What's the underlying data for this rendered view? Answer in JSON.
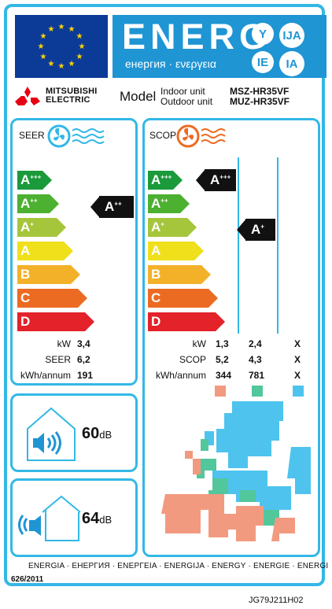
{
  "header": {
    "energy_label": "ENERG",
    "energy_sub": "енергия · ενεργεια",
    "lang_badges": [
      "Y",
      "IJA",
      "IE",
      "IA"
    ]
  },
  "brand": {
    "logo_line1": "MITSUBISHI",
    "logo_line2": "ELECTRIC"
  },
  "model": {
    "label": "Model",
    "indoor_label": "Indoor unit",
    "outdoor_label": "Outdoor unit",
    "indoor_id": "MSZ-HR35VF",
    "outdoor_id": "MUZ-HR35VF"
  },
  "seer_panel": {
    "title": "SEER",
    "class_ratings": [
      {
        "letter": "A",
        "sup": "+++",
        "color": "#1a9a3a"
      },
      {
        "letter": "A",
        "sup": "++",
        "color": "#4cb030"
      },
      {
        "letter": "A",
        "sup": "+",
        "color": "#a5c63a"
      },
      {
        "letter": "A",
        "sup": "",
        "color": "#f0e01c"
      },
      {
        "letter": "B",
        "sup": "",
        "color": "#f3b12a"
      },
      {
        "letter": "C",
        "sup": "",
        "color": "#ec6b22"
      },
      {
        "letter": "D",
        "sup": "",
        "color": "#e3222a"
      }
    ],
    "rating": {
      "letter": "A",
      "sup": "++"
    },
    "rows": [
      {
        "label": "kW",
        "value": "3,4"
      },
      {
        "label": "SEER",
        "value": "6,2"
      },
      {
        "label": "kWh/annum",
        "value": "191"
      }
    ]
  },
  "scop_panel": {
    "title": "SCOP",
    "ratings": [
      {
        "letter": "A",
        "sup": "+++"
      },
      {
        "letter": "A",
        "sup": "+"
      }
    ],
    "rows": [
      {
        "label": "kW",
        "values": [
          "1,3",
          "2,4",
          "X"
        ]
      },
      {
        "label": "SCOP",
        "values": [
          "5,2",
          "4,3",
          "X"
        ]
      },
      {
        "label": "kWh/annum",
        "values": [
          "344",
          "781",
          "X"
        ]
      }
    ],
    "zone_colors": [
      "#f29a80",
      "#52c79c",
      "#4ec3ee"
    ]
  },
  "noise": {
    "indoor_value": "60",
    "outdoor_value": "64",
    "unit": "dB"
  },
  "footer": {
    "languages": "ENERGIA · ЕНЕРГИЯ · ΕΝΕΡΓΕΙΑ · ENERGIJA · ENERGY · ENERGIE · ENERGI",
    "regulation": "626/2011",
    "code": "JG79J211H02"
  }
}
